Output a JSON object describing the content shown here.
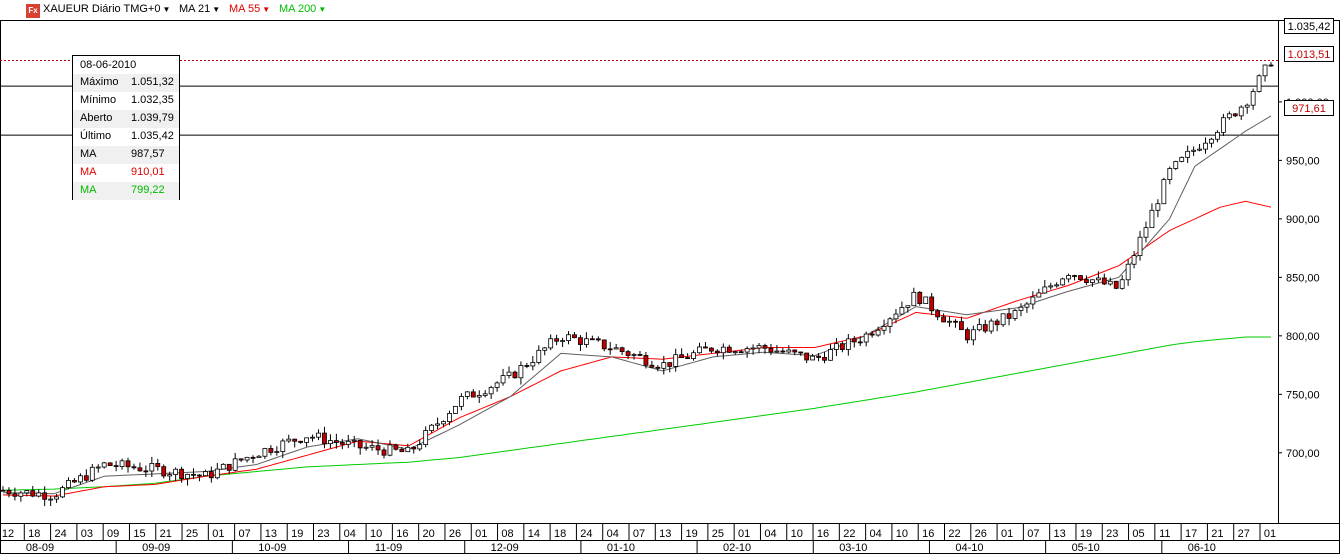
{
  "toolbar": {
    "symbol": "XAUEUR Diário TMG+0",
    "ma21": "MA 21",
    "ma55": "MA 55",
    "ma200": "MA 200",
    "logo": "Fx"
  },
  "colors": {
    "ma21": "#606060",
    "ma55": "#ff0000",
    "ma200": "#00cc00",
    "up": "#ffffff",
    "down": "#c00000",
    "bid_line": "#c00000"
  },
  "infobox": {
    "date": "08-06-2010",
    "rows": [
      {
        "label": "Máximo",
        "value": "1.051,32"
      },
      {
        "label": "Mínimo",
        "value": "1.032,35"
      },
      {
        "label": "Aberto",
        "value": "1.039,79"
      },
      {
        "label": "Último",
        "value": "1.035,42"
      },
      {
        "label": "MA",
        "value": "987,57"
      },
      {
        "label": "MA",
        "value": "910,01"
      },
      {
        "label": "MA",
        "value": "799,22"
      }
    ]
  },
  "price_labels": {
    "last": "1.035,42",
    "upper": "1.013,51",
    "lower": "971,61"
  },
  "chart_data": {
    "type": "candlestick",
    "title": "XAUEUR Diário TMG+0",
    "y_ticks": [
      "1.000,00",
      "950,00",
      "900,00",
      "850,00",
      "800,00",
      "750,00",
      "700,00"
    ],
    "y_tick_values": [
      1000,
      950,
      900,
      850,
      800,
      750,
      700
    ],
    "y_range": [
      640,
      1070
    ],
    "x_day_labels": [
      "12",
      "18",
      "24",
      "03",
      "09",
      "15",
      "21",
      "25",
      "01",
      "07",
      "13",
      "19",
      "23",
      "04",
      "10",
      "16",
      "20",
      "26",
      "01",
      "08",
      "14",
      "18",
      "24",
      "04",
      "07",
      "13",
      "19",
      "25",
      "01",
      "04",
      "10",
      "16",
      "22",
      "04",
      "10",
      "16",
      "22",
      "26",
      "01",
      "07",
      "13",
      "19",
      "23",
      "05",
      "11",
      "17",
      "21",
      "27",
      "01"
    ],
    "x_month_labels": [
      "08-09",
      "09-09",
      "10-09",
      "11-09",
      "12-09",
      "01-10",
      "02-10",
      "03-10",
      "04-10",
      "05-10",
      "06-10"
    ],
    "horizontal_levels": [
      1035.42,
      1013.51,
      971.61
    ],
    "price_path_x_pct": [
      0,
      4,
      8,
      12,
      16,
      20,
      24,
      28,
      32,
      36,
      40,
      44,
      48,
      52,
      56,
      60,
      64,
      68,
      72,
      76,
      80,
      84,
      88,
      92,
      94,
      96,
      98,
      100
    ],
    "price_path": [
      668,
      664,
      690,
      686,
      680,
      700,
      715,
      705,
      700,
      745,
      765,
      800,
      790,
      775,
      790,
      790,
      780,
      800,
      835,
      800,
      820,
      855,
      840,
      940,
      960,
      980,
      1000,
      1035
    ],
    "ma21_path": [
      666,
      665,
      680,
      682,
      684,
      690,
      705,
      712,
      703,
      724,
      748,
      785,
      782,
      770,
      782,
      786,
      783,
      800,
      825,
      818,
      824,
      838,
      850,
      900,
      945,
      960,
      975,
      988
    ],
    "ma55_path": [
      664,
      663,
      671,
      673,
      680,
      686,
      698,
      710,
      706,
      730,
      748,
      770,
      782,
      780,
      785,
      790,
      790,
      800,
      820,
      815,
      830,
      843,
      860,
      890,
      900,
      910,
      915,
      910
    ],
    "ma200_path": [
      668,
      669,
      671,
      674,
      680,
      684,
      688,
      690,
      692,
      696,
      702,
      708,
      714,
      720,
      726,
      732,
      738,
      745,
      752,
      760,
      768,
      776,
      784,
      792,
      795,
      797,
      799,
      799
    ]
  }
}
